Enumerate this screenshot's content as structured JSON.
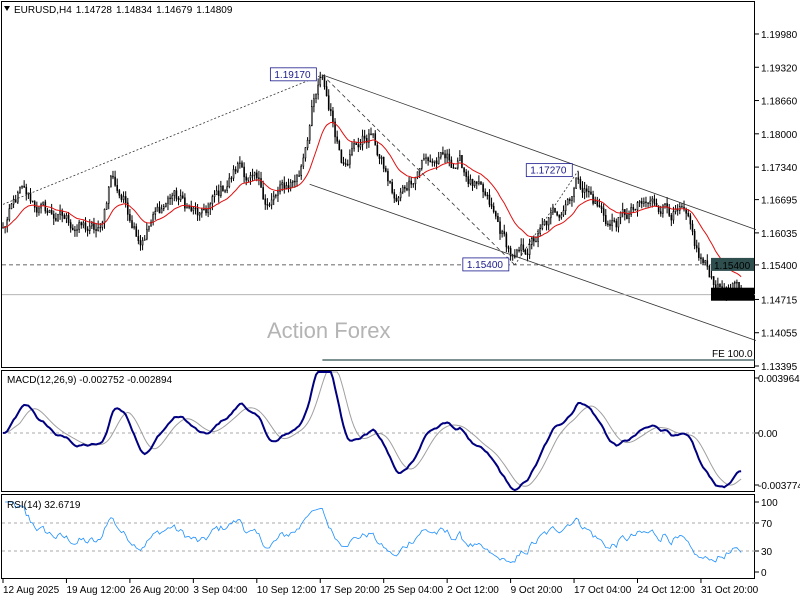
{
  "header": {
    "symbol": "EURUSD,H4",
    "open": "1.14728",
    "high": "1.14834",
    "low": "1.14679",
    "close": "1.14809"
  },
  "watermark": "Action Forex",
  "colors": {
    "candle": "#000000",
    "ma": "#e01010",
    "macd_main": "#000080",
    "macd_signal": "#a0a0a0",
    "rsi": "#1e90ff",
    "price_tag_bg": "#2f4f4f",
    "current_tag_bg": "#000000",
    "fe_line": "#2f4f4f"
  },
  "chart_data": [
    {
      "type": "candlestick",
      "title": "EURUSD,H4",
      "timeframe": "H4",
      "ylim": [
        1.13395,
        1.2031
      ],
      "y_ticks": [
        "1.19980",
        "1.19320",
        "1.18660",
        "1.18000",
        "1.17340",
        "1.16695",
        "1.16035",
        "1.15400",
        "1.14715",
        "1.14055",
        "1.13395"
      ],
      "x_ticks": [
        "12 Aug 2025",
        "19 Aug 12:00",
        "26 Aug 20:00",
        "3 Sep 04:00",
        "10 Sep 12:00",
        "17 Sep 20:00",
        "25 Sep 04:00",
        "2 Oct 12:00",
        "9 Oct 20:00",
        "17 Oct 04:00",
        "24 Oct 12:00",
        "31 Oct 20:00"
      ],
      "bars_count": 350,
      "bars_per_x_tick": 30,
      "close_path": [
        {
          "bar": 0,
          "price": 1.161
        },
        {
          "bar": 8,
          "price": 1.168
        },
        {
          "bar": 18,
          "price": 1.165
        },
        {
          "bar": 28,
          "price": 1.163
        },
        {
          "bar": 46,
          "price": 1.16
        },
        {
          "bar": 51,
          "price": 1.172
        },
        {
          "bar": 65,
          "price": 1.16
        },
        {
          "bar": 80,
          "price": 1.168
        },
        {
          "bar": 94,
          "price": 1.163
        },
        {
          "bar": 112,
          "price": 1.174
        },
        {
          "bar": 126,
          "price": 1.166
        },
        {
          "bar": 140,
          "price": 1.172
        },
        {
          "bar": 146,
          "price": 1.185
        },
        {
          "bar": 151,
          "price": 1.1905
        },
        {
          "bar": 160,
          "price": 1.176
        },
        {
          "bar": 174,
          "price": 1.18
        },
        {
          "bar": 186,
          "price": 1.166
        },
        {
          "bar": 198,
          "price": 1.175
        },
        {
          "bar": 216,
          "price": 1.174
        },
        {
          "bar": 230,
          "price": 1.165
        },
        {
          "bar": 242,
          "price": 1.1545
        },
        {
          "bar": 254,
          "price": 1.16
        },
        {
          "bar": 263,
          "price": 1.165
        },
        {
          "bar": 272,
          "price": 1.1715
        },
        {
          "bar": 287,
          "price": 1.162
        },
        {
          "bar": 301,
          "price": 1.165
        },
        {
          "bar": 313,
          "price": 1.1665
        },
        {
          "bar": 322,
          "price": 1.163
        },
        {
          "bar": 329,
          "price": 1.155
        },
        {
          "bar": 338,
          "price": 1.15
        },
        {
          "bar": 349,
          "price": 1.14809
        }
      ],
      "moving_average": {
        "type": "EMA",
        "period": 20
      },
      "price_labels": [
        {
          "text": "1.19170",
          "bar": 151,
          "price": 1.1917
        },
        {
          "text": "1.15400",
          "bar": 242,
          "price": 1.154
        },
        {
          "text": "1.17270",
          "bar": 272,
          "price": 1.1727
        }
      ],
      "horizontal_lines": [
        {
          "price": 1.154,
          "style": "dashed",
          "tag": "1.15400"
        },
        {
          "price": 1.14809,
          "style": "solid",
          "tag": "1.14809"
        }
      ],
      "channel": {
        "upper": [
          {
            "bar": 151,
            "price": 1.1917
          },
          {
            "bar": 356,
            "price": 1.161
          }
        ],
        "lower": [
          {
            "bar": 145,
            "price": 1.17
          },
          {
            "bar": 356,
            "price": 1.139
          }
        ]
      },
      "swing_lines": [
        {
          "from": {
            "bar": 0,
            "price": 1.166
          },
          "to": {
            "bar": 151,
            "price": 1.1917
          },
          "style": "dotted"
        },
        {
          "from": {
            "bar": 151,
            "price": 1.1917
          },
          "to": {
            "bar": 242,
            "price": 1.154
          },
          "style": "dashed"
        },
        {
          "from": {
            "bar": 242,
            "price": 1.154
          },
          "to": {
            "bar": 272,
            "price": 1.1727
          },
          "style": "dotted"
        }
      ],
      "fe_line": {
        "label": "FE 100.0",
        "price": 1.1352,
        "from_bar": 151
      }
    },
    {
      "type": "line",
      "title": "MACD(12,26,9) -0.002752 -0.002894",
      "label": "MACD(12,26,9)",
      "main_value": "-0.002752",
      "signal_value": "-0.002894",
      "params": [
        12,
        26,
        9
      ],
      "ylim": [
        -0.003774,
        0.003964
      ],
      "y_ticks": [
        "0.003964",
        "0.00",
        "-0.003774"
      ]
    },
    {
      "type": "line",
      "title": "RSI(14) 32.6719",
      "label": "RSI(14)",
      "value": "32.6719",
      "period": 14,
      "ylim": [
        0,
        100
      ],
      "levels": [
        70,
        30
      ],
      "y_ticks": [
        "100",
        "70",
        "30",
        "0"
      ]
    }
  ]
}
